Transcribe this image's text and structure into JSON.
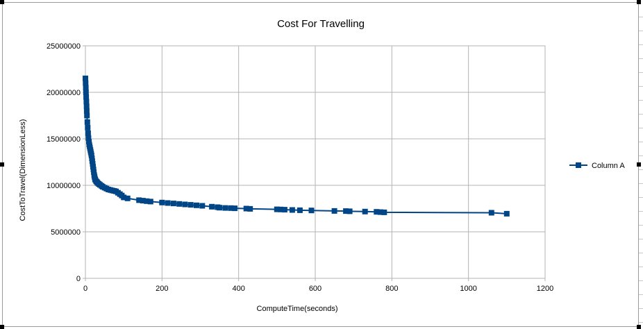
{
  "chart_data": {
    "type": "line",
    "title": "Cost For Travelling",
    "xlabel": "ComputeTime(seconds)",
    "ylabel": "CostToTravel(DimensionLess)",
    "xlim": [
      0,
      1200
    ],
    "ylim": [
      0,
      25000000
    ],
    "x_ticks": [
      "0",
      "200",
      "400",
      "600",
      "800",
      "1000",
      "1200"
    ],
    "y_ticks": [
      "0",
      "5000000",
      "10000000",
      "15000000",
      "20000000",
      "25000000"
    ],
    "grid": true,
    "legend_position": "right",
    "color": "#004586",
    "series": [
      {
        "name": "Column A",
        "x": [
          0,
          0.5,
          1,
          1.5,
          2,
          2.5,
          3,
          3.5,
          4,
          5,
          6,
          7,
          8,
          9,
          10,
          11,
          12,
          13,
          14,
          15,
          16,
          17,
          18,
          19,
          20,
          21,
          22,
          23,
          24,
          25,
          26,
          28,
          30,
          32,
          35,
          38,
          42,
          45,
          50,
          55,
          60,
          65,
          70,
          75,
          80,
          85,
          90,
          95,
          100,
          110,
          140,
          150,
          160,
          170,
          200,
          215,
          230,
          245,
          260,
          275,
          290,
          305,
          330,
          345,
          350,
          365,
          380,
          390,
          420,
          430,
          500,
          510,
          520,
          540,
          560,
          590,
          650,
          680,
          690,
          730,
          760,
          770,
          780,
          1060,
          1100
        ],
        "y": [
          21500000,
          21000000,
          20500000,
          20000000,
          19500000,
          19000000,
          18500000,
          18000000,
          17500000,
          16800000,
          16200000,
          15600000,
          15100000,
          14700000,
          14400000,
          14200000,
          14000000,
          13800000,
          13600000,
          13400000,
          13200000,
          12900000,
          12600000,
          12300000,
          12000000,
          11700000,
          11400000,
          11100000,
          10900000,
          10700000,
          10600000,
          10450000,
          10350000,
          10250000,
          10150000,
          10050000,
          9950000,
          9850000,
          9750000,
          9650000,
          9550000,
          9500000,
          9450000,
          9400000,
          9350000,
          9200000,
          9050000,
          8900000,
          8700000,
          8600000,
          8400000,
          8350000,
          8300000,
          8250000,
          8150000,
          8100000,
          8050000,
          8000000,
          7950000,
          7900000,
          7850000,
          7800000,
          7700000,
          7650000,
          7600000,
          7570000,
          7550000,
          7530000,
          7500000,
          7470000,
          7420000,
          7400000,
          7380000,
          7350000,
          7320000,
          7300000,
          7250000,
          7230000,
          7210000,
          7180000,
          7150000,
          7120000,
          7100000,
          7050000,
          6950000
        ]
      }
    ]
  }
}
